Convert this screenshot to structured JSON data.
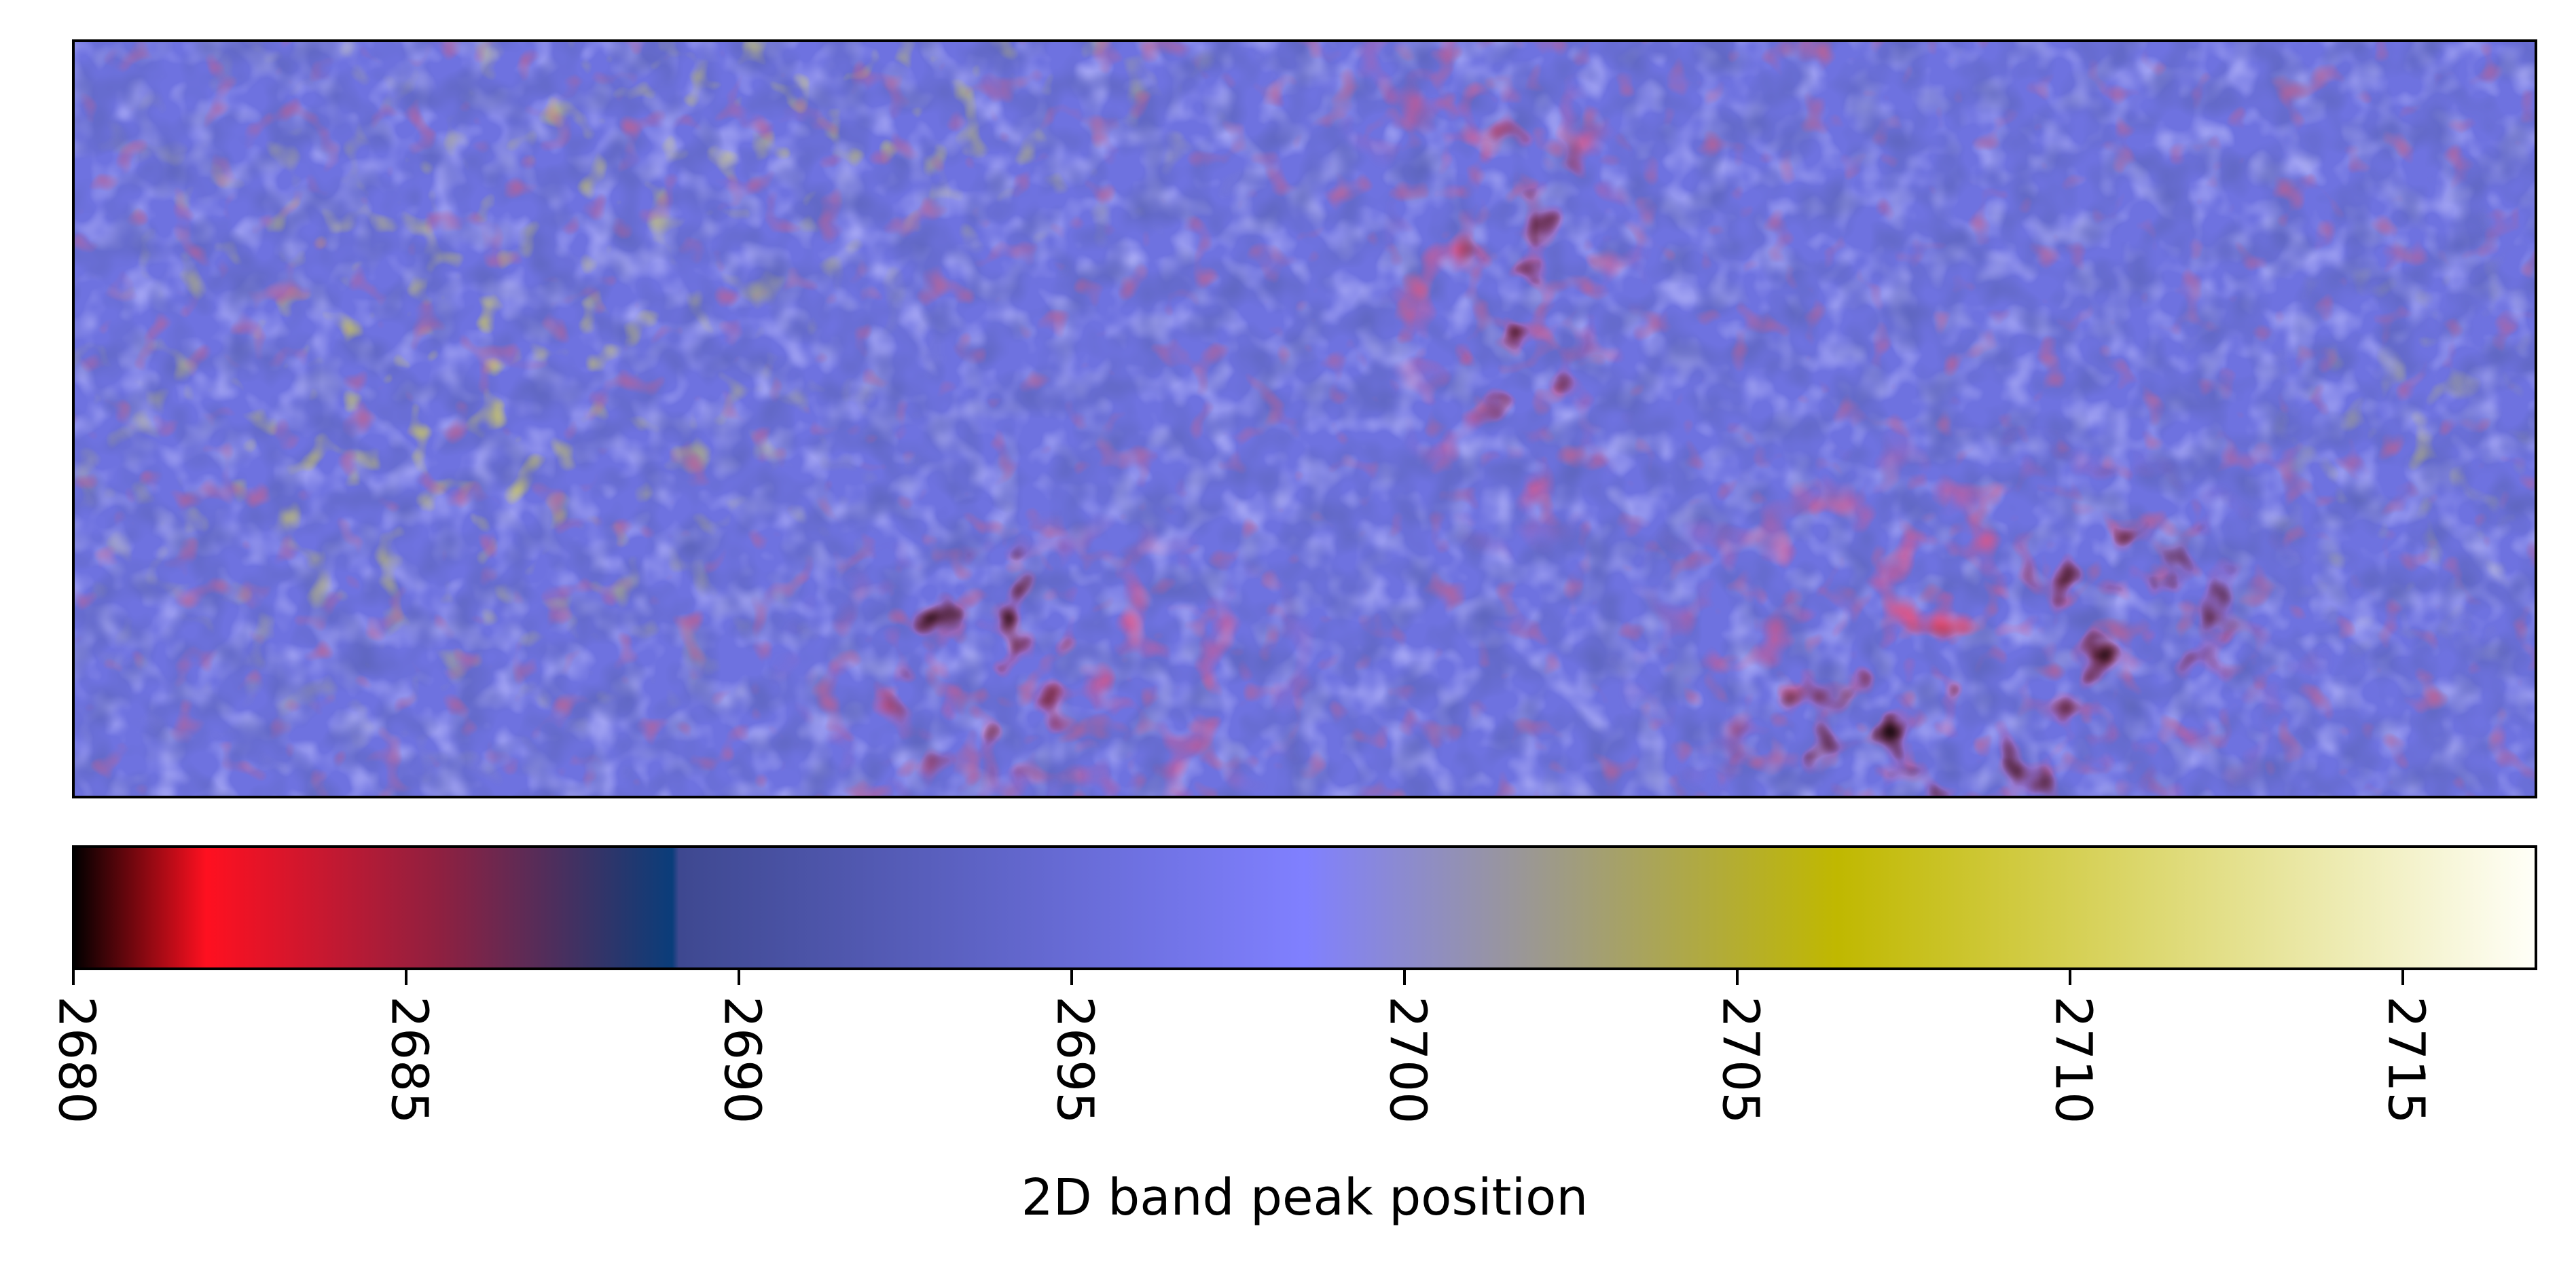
{
  "chart_data": {
    "type": "heatmap",
    "title": "",
    "xlabel": "",
    "ylabel": "",
    "axes_ticks_visible": false,
    "grid": false,
    "colorbar": {
      "orientation": "horizontal",
      "placement": "bottom",
      "label": "2D band peak position",
      "range": [
        2680,
        2717
      ],
      "ticks": [
        2680,
        2685,
        2690,
        2695,
        2700,
        2705,
        2710,
        2715
      ],
      "tick_labels": [
        "2680",
        "2685",
        "2690",
        "2695",
        "2700",
        "2705",
        "2710",
        "2715"
      ],
      "tick_label_rotation": "vertical",
      "color_stops": [
        {
          "value": 2680.0,
          "color": "#000000"
        },
        {
          "value": 2682.0,
          "color": "#ff1020"
        },
        {
          "value": 2685.5,
          "color": "#8f2040"
        },
        {
          "value": 2689.0,
          "color": "#0a3d7a"
        },
        {
          "value": 2689.1,
          "color": "#3e4890"
        },
        {
          "value": 2698.5,
          "color": "#8080ff"
        },
        {
          "value": 2706.5,
          "color": "#c0b800"
        },
        {
          "value": 2717.0,
          "color": "#fffff8"
        }
      ]
    },
    "map_features": {
      "background_value_range": [
        2692,
        2699
      ],
      "high_region": {
        "description_values": [
          2700,
          2710
        ],
        "location": "upper-left"
      },
      "low_regions": [
        {
          "location": "bottom-center-left",
          "min_value": 2680
        },
        {
          "location": "center-vertical-band",
          "min_value": 2680
        },
        {
          "location": "bottom-right",
          "min_value": 2680
        }
      ]
    }
  }
}
